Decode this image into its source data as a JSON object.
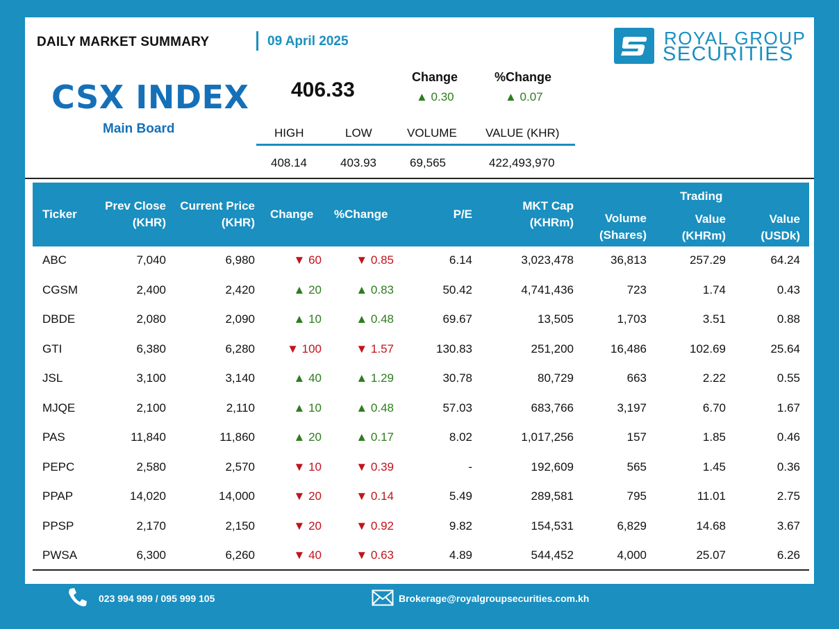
{
  "header": {
    "summary_title": "DAILY MARKET SUMMARY",
    "date": "09 April 2025",
    "brand_line1": "ROYAL GROUP",
    "brand_line2": "SECURITIES"
  },
  "index": {
    "title": "CSX INDEX",
    "board": "Main Board",
    "value": "406.33",
    "change_label": "Change",
    "pct_change_label": "%Change",
    "change": "▲ 0.30",
    "pct_change": "▲ 0.07",
    "stats_labels": [
      "HIGH",
      "LOW",
      "VOLUME",
      "VALUE (KHR)"
    ],
    "stats_values": [
      "408.14",
      "403.93",
      "69,565",
      "422,493,970"
    ]
  },
  "table": {
    "headers": {
      "ticker": "Ticker",
      "prev_close_1": "Prev Close",
      "prev_close_2": "(KHR)",
      "current_price_1": "Current Price",
      "current_price_2": "(KHR)",
      "change": "Change",
      "pct_change": "%Change",
      "pe": "P/E",
      "mkt_cap_1": "MKT Cap",
      "mkt_cap_2": "(KHRm)",
      "volume_1": "Volume",
      "volume_2": "(Shares)",
      "trading": "Trading",
      "value_khr_1": "Value",
      "value_khr_2": "(KHRm)",
      "value_usd_1": "Value",
      "value_usd_2": "(USDk)"
    },
    "rows": [
      {
        "ticker": "ABC",
        "prev": "7,040",
        "cur": "6,980",
        "dir": "down",
        "chg": "▼ 60",
        "pct": "▼ 0.85",
        "pe": "6.14",
        "mcap": "3,023,478",
        "vol": "36,813",
        "vkhr": "257.29",
        "vusd": "64.24"
      },
      {
        "ticker": "CGSM",
        "prev": "2,400",
        "cur": "2,420",
        "dir": "up",
        "chg": "▲ 20",
        "pct": "▲ 0.83",
        "pe": "50.42",
        "mcap": "4,741,436",
        "vol": "723",
        "vkhr": "1.74",
        "vusd": "0.43"
      },
      {
        "ticker": "DBDE",
        "prev": "2,080",
        "cur": "2,090",
        "dir": "up",
        "chg": "▲ 10",
        "pct": "▲ 0.48",
        "pe": "69.67",
        "mcap": "13,505",
        "vol": "1,703",
        "vkhr": "3.51",
        "vusd": "0.88"
      },
      {
        "ticker": "GTI",
        "prev": "6,380",
        "cur": "6,280",
        "dir": "down",
        "chg": "▼ 100",
        "pct": "▼ 1.57",
        "pe": "130.83",
        "mcap": "251,200",
        "vol": "16,486",
        "vkhr": "102.69",
        "vusd": "25.64"
      },
      {
        "ticker": "JSL",
        "prev": "3,100",
        "cur": "3,140",
        "dir": "up",
        "chg": "▲ 40",
        "pct": "▲ 1.29",
        "pe": "30.78",
        "mcap": "80,729",
        "vol": "663",
        "vkhr": "2.22",
        "vusd": "0.55"
      },
      {
        "ticker": "MJQE",
        "prev": "2,100",
        "cur": "2,110",
        "dir": "up",
        "chg": "▲ 10",
        "pct": "▲ 0.48",
        "pe": "57.03",
        "mcap": "683,766",
        "vol": "3,197",
        "vkhr": "6.70",
        "vusd": "1.67"
      },
      {
        "ticker": "PAS",
        "prev": "11,840",
        "cur": "11,860",
        "dir": "up",
        "chg": "▲ 20",
        "pct": "▲ 0.17",
        "pe": "8.02",
        "mcap": "1,017,256",
        "vol": "157",
        "vkhr": "1.85",
        "vusd": "0.46"
      },
      {
        "ticker": "PEPC",
        "prev": "2,580",
        "cur": "2,570",
        "dir": "down",
        "chg": "▼ 10",
        "pct": "▼ 0.39",
        "pe": "-",
        "mcap": "192,609",
        "vol": "565",
        "vkhr": "1.45",
        "vusd": "0.36"
      },
      {
        "ticker": "PPAP",
        "prev": "14,020",
        "cur": "14,000",
        "dir": "down",
        "chg": "▼ 20",
        "pct": "▼ 0.14",
        "pe": "5.49",
        "mcap": "289,581",
        "vol": "795",
        "vkhr": "11.01",
        "vusd": "2.75"
      },
      {
        "ticker": "PPSP",
        "prev": "2,170",
        "cur": "2,150",
        "dir": "down",
        "chg": "▼ 20",
        "pct": "▼ 0.92",
        "pe": "9.82",
        "mcap": "154,531",
        "vol": "6,829",
        "vkhr": "14.68",
        "vusd": "3.67"
      },
      {
        "ticker": "PWSA",
        "prev": "6,300",
        "cur": "6,260",
        "dir": "down",
        "chg": "▼ 40",
        "pct": "▼ 0.63",
        "pe": "4.89",
        "mcap": "544,452",
        "vol": "4,000",
        "vkhr": "25.07",
        "vusd": "6.26"
      }
    ]
  },
  "footer": {
    "phone": "023 994 999 / 095 999 105",
    "email": "Brokerage@royalgroupsecurities.com.kh"
  },
  "colors": {
    "brand_blue": "#1a8fc0",
    "title_blue": "#1570b8",
    "up_green": "#2e7d1e",
    "down_red": "#c0141c"
  }
}
